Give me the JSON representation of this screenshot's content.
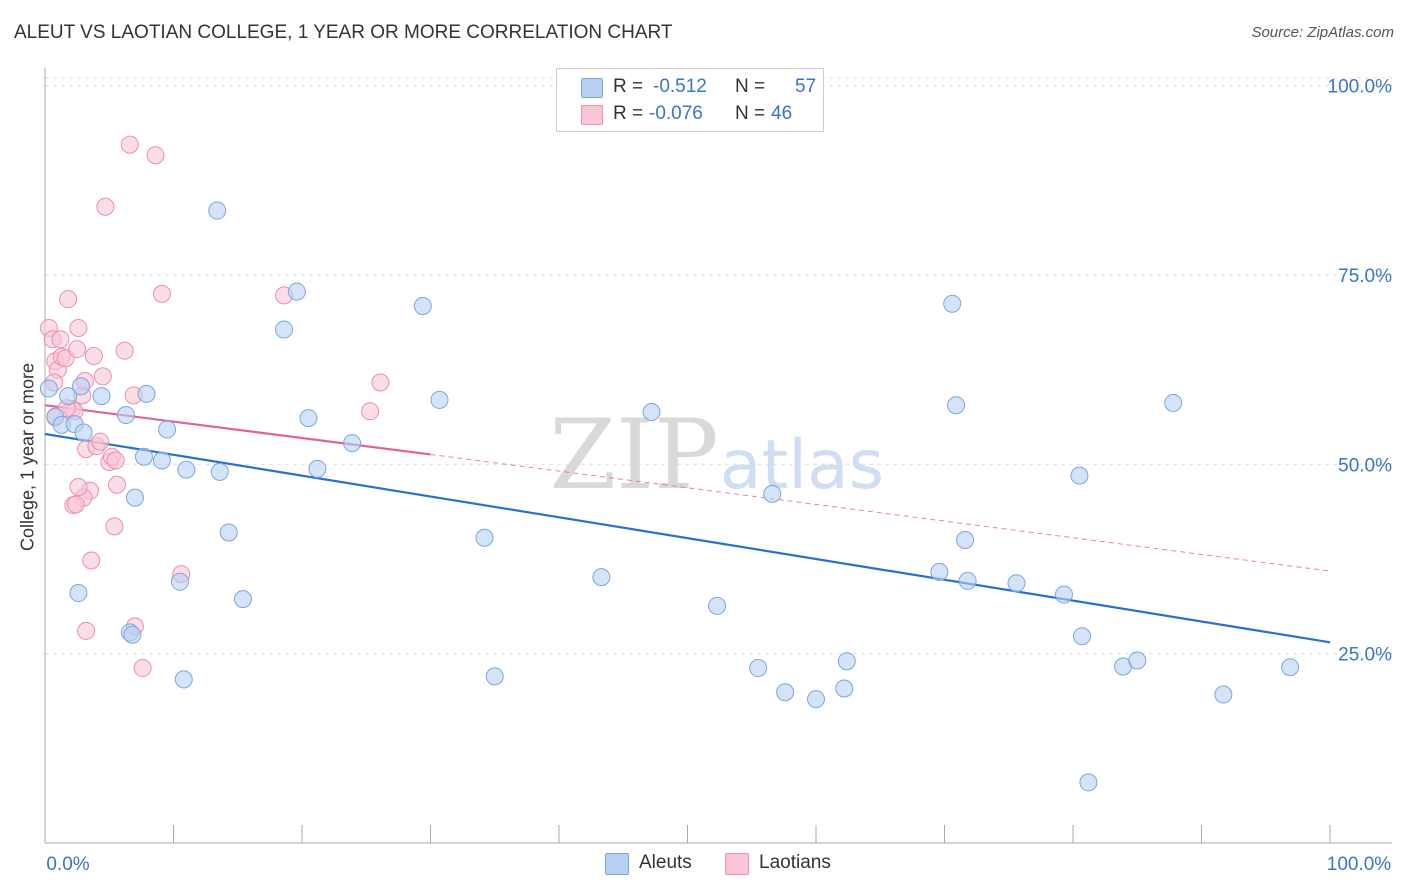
{
  "title": "ALEUT VS LAOTIAN COLLEGE, 1 YEAR OR MORE CORRELATION CHART",
  "source": "Source: ZipAtlas.com",
  "watermark": {
    "zip": "ZIP",
    "atlas": "atlas"
  },
  "legend": {
    "rows": [
      {
        "r_label": "R =",
        "r_value": "-0.512",
        "n_label": "N =",
        "n_value": "57"
      },
      {
        "r_label": "R =",
        "r_value": "-0.076",
        "n_label": "N =",
        "n_value": "46"
      }
    ]
  },
  "colors": {
    "aleuts_fill": "#b7d1f2",
    "aleuts_stroke": "#7aa7df",
    "aleuts_line": "#2a6fd1",
    "laotians_fill": "#f8c6d5",
    "laotians_stroke": "#ec8fac",
    "laotians_line": "#e46490",
    "axis_label": "#3a75c4",
    "grid": "#dddddd"
  },
  "chart_data": {
    "type": "scatter",
    "xlabel": "",
    "ylabel": "College, 1 year or more",
    "xlim": [
      0,
      100
    ],
    "ylim": [
      0,
      101
    ],
    "x_tick_labels": {
      "left": "0.0%",
      "right": "100.0%"
    },
    "y_ticks": [
      {
        "value": 25,
        "label": "25.0%"
      },
      {
        "value": 50,
        "label": "50.0%"
      },
      {
        "value": 75,
        "label": "75.0%"
      },
      {
        "value": 100,
        "label": "100.0%"
      }
    ],
    "series": [
      {
        "name": "Aleuts",
        "R": -0.512,
        "N": 57,
        "trend": {
          "x": [
            0,
            100
          ],
          "y": [
            54.0,
            26.5
          ],
          "dashed_to": null
        },
        "points": [
          [
            0.3,
            60.0
          ],
          [
            0.8,
            56.3
          ],
          [
            1.3,
            55.2
          ],
          [
            1.8,
            59.0
          ],
          [
            2.3,
            55.3
          ],
          [
            2.8,
            60.3
          ],
          [
            3.0,
            54.2
          ],
          [
            4.4,
            59.0
          ],
          [
            6.3,
            56.5
          ],
          [
            7.7,
            51.0
          ],
          [
            7.0,
            45.6
          ],
          [
            7.9,
            59.3
          ],
          [
            9.5,
            54.6
          ],
          [
            9.1,
            50.5
          ],
          [
            11.0,
            49.3
          ],
          [
            10.5,
            34.5
          ],
          [
            10.8,
            21.6
          ],
          [
            13.4,
            83.5
          ],
          [
            13.6,
            49.0
          ],
          [
            14.3,
            41.0
          ],
          [
            15.4,
            32.2
          ],
          [
            18.6,
            67.8
          ],
          [
            19.6,
            72.8
          ],
          [
            20.5,
            56.1
          ],
          [
            21.2,
            49.4
          ],
          [
            23.9,
            52.8
          ],
          [
            29.4,
            70.9
          ],
          [
            30.7,
            58.5
          ],
          [
            34.2,
            40.3
          ],
          [
            35.0,
            22.0
          ],
          [
            43.3,
            35.1
          ],
          [
            47.2,
            56.9
          ],
          [
            52.3,
            31.3
          ],
          [
            55.5,
            23.1
          ],
          [
            56.6,
            46.1
          ],
          [
            57.6,
            19.9
          ],
          [
            60.0,
            19.0
          ],
          [
            62.2,
            20.4
          ],
          [
            62.4,
            24.0
          ],
          [
            69.6,
            35.8
          ],
          [
            70.6,
            71.2
          ],
          [
            70.9,
            57.8
          ],
          [
            71.6,
            40.0
          ],
          [
            71.8,
            34.6
          ],
          [
            75.6,
            34.3
          ],
          [
            79.3,
            32.8
          ],
          [
            80.5,
            48.5
          ],
          [
            80.7,
            27.3
          ],
          [
            81.2,
            8.0
          ],
          [
            83.9,
            23.3
          ],
          [
            85.0,
            24.1
          ],
          [
            87.8,
            58.1
          ],
          [
            91.7,
            19.6
          ],
          [
            96.9,
            23.2
          ],
          [
            2.6,
            33.0
          ],
          [
            6.6,
            27.8
          ],
          [
            6.8,
            27.5
          ]
        ]
      },
      {
        "name": "Laotians",
        "R": -0.076,
        "N": 46,
        "trend": {
          "x": [
            0,
            30
          ],
          "y": [
            57.8,
            51.3
          ],
          "dashed_to": [
            100,
            35.9
          ]
        },
        "points": [
          [
            0.3,
            68.0
          ],
          [
            0.6,
            66.5
          ],
          [
            0.8,
            63.6
          ],
          [
            1.0,
            62.5
          ],
          [
            1.3,
            64.2
          ],
          [
            1.6,
            64.0
          ],
          [
            1.8,
            71.8
          ],
          [
            2.1,
            57.3
          ],
          [
            2.3,
            57.0
          ],
          [
            2.5,
            65.2
          ],
          [
            2.6,
            68.0
          ],
          [
            2.9,
            59.1
          ],
          [
            3.1,
            61.0
          ],
          [
            3.2,
            52.0
          ],
          [
            3.5,
            46.5
          ],
          [
            3.8,
            64.3
          ],
          [
            4.0,
            52.4
          ],
          [
            4.3,
            53.0
          ],
          [
            4.5,
            61.6
          ],
          [
            4.7,
            84.0
          ],
          [
            5.0,
            50.3
          ],
          [
            5.2,
            51.0
          ],
          [
            5.5,
            50.5
          ],
          [
            5.6,
            47.3
          ],
          [
            5.4,
            41.8
          ],
          [
            6.2,
            65.0
          ],
          [
            6.6,
            92.2
          ],
          [
            6.9,
            59.1
          ],
          [
            7.0,
            28.6
          ],
          [
            7.6,
            23.1
          ],
          [
            8.6,
            90.8
          ],
          [
            9.1,
            72.5
          ],
          [
            10.6,
            35.5
          ],
          [
            3.0,
            45.6
          ],
          [
            2.2,
            44.6
          ],
          [
            2.6,
            47.0
          ],
          [
            1.7,
            57.4
          ],
          [
            0.8,
            56.2
          ],
          [
            0.7,
            60.8
          ],
          [
            3.6,
            37.3
          ],
          [
            3.2,
            28.0
          ],
          [
            1.2,
            66.5
          ],
          [
            2.4,
            44.7
          ],
          [
            18.6,
            72.3
          ],
          [
            25.3,
            57.0
          ],
          [
            26.1,
            60.8
          ]
        ]
      }
    ],
    "legend_position": "top-center"
  }
}
